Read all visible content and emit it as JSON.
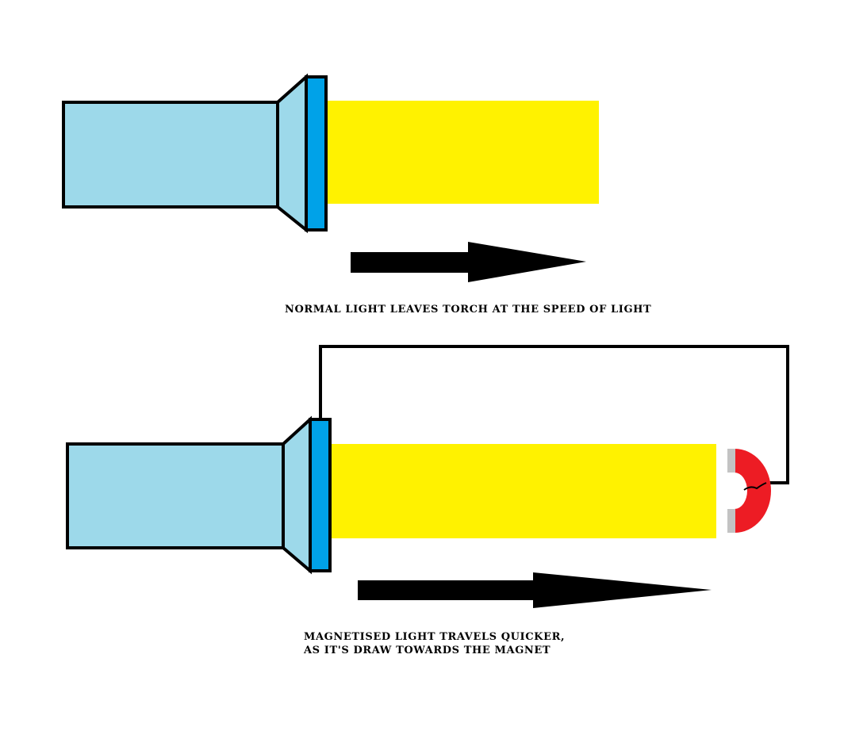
{
  "colors": {
    "torch_body": "#9dd9ea",
    "torch_lens": "#00a2e8",
    "beam": "#fff200",
    "magnet": "#ed1c24",
    "magnet_tips": "#c3c3c3",
    "outline": "#000000",
    "background": "#ffffff"
  },
  "captions": {
    "normal": "NORMAL LIGHT LEAVES TORCH AT THE SPEED OF LIGHT",
    "magnetised_line1": "MAGNETISED LIGHT TRAVELS QUICKER,",
    "magnetised_line2": "AS IT'S DRAW TOWARDS THE MAGNET"
  }
}
